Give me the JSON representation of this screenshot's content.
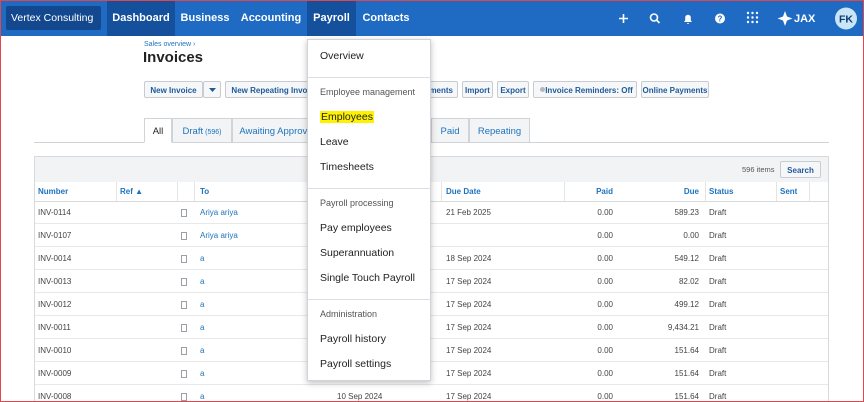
{
  "nav": {
    "org": "Vertex Consulting",
    "items": [
      "Dashboard",
      "Business",
      "Accounting",
      "Payroll",
      "Contacts"
    ],
    "brand": "JAX",
    "avatar": "FK"
  },
  "page": {
    "breadcrumb": "Sales overview ›",
    "title": "Invoices",
    "buttons": [
      "New Invoice",
      "New Repeating Invoice",
      "Statements",
      "Import",
      "Export",
      "Invoice Reminders: Off",
      "Online Payments"
    ],
    "tabs": [
      {
        "label": "All"
      },
      {
        "label": "Draft",
        "count": "(596)"
      },
      {
        "label": "Awaiting Approval"
      },
      {
        "label": "Paid"
      },
      {
        "label": "Repeating"
      }
    ]
  },
  "table": {
    "items": "596 items",
    "search": "Search",
    "columns": [
      "Number",
      "Ref ▲",
      "To",
      "Due Date",
      "Paid",
      "Due",
      "Status",
      "Sent"
    ],
    "rows": [
      {
        "number": "INV-0114",
        "to": "Ariya ariya",
        "due_date": "21 Feb 2025",
        "paid": "0.00",
        "due": "589.23",
        "status": "Draft"
      },
      {
        "number": "INV-0107",
        "to": "Ariya ariya",
        "paid": "0.00",
        "due": "0.00",
        "status": "Draft"
      },
      {
        "number": "INV-0014",
        "to": "a",
        "due_date": "18 Sep 2024",
        "paid": "0.00",
        "due": "549.12",
        "status": "Draft"
      },
      {
        "number": "INV-0013",
        "to": "a",
        "due_date": "17 Sep 2024",
        "paid": "0.00",
        "due": "82.02",
        "status": "Draft"
      },
      {
        "number": "INV-0012",
        "to": "a",
        "due_date": "17 Sep 2024",
        "paid": "0.00",
        "due": "499.12",
        "status": "Draft"
      },
      {
        "number": "INV-0011",
        "to": "a",
        "due_date": "17 Sep 2024",
        "paid": "0.00",
        "due": "9,434.21",
        "status": "Draft"
      },
      {
        "number": "INV-0010",
        "to": "a",
        "due_date": "17 Sep 2024",
        "paid": "0.00",
        "due": "151.64",
        "status": "Draft"
      },
      {
        "number": "INV-0009",
        "to": "a",
        "due_date": "17 Sep 2024",
        "paid": "0.00",
        "due": "151.64",
        "status": "Draft"
      },
      {
        "number": "INV-0008",
        "to": "a",
        "date": "10 Sep 2024",
        "due_date": "17 Sep 2024",
        "paid": "0.00",
        "due": "151.64",
        "status": "Draft"
      }
    ]
  },
  "menu": {
    "sections": [
      {
        "items": [
          "Overview"
        ]
      },
      {
        "heading": "Employee management",
        "items": [
          "Employees",
          "Leave",
          "Timesheets"
        ]
      },
      {
        "heading": "Payroll processing",
        "items": [
          "Pay employees",
          "Superannuation",
          "Single Touch Payroll"
        ]
      },
      {
        "heading": "Administration",
        "items": [
          "Payroll history",
          "Payroll settings"
        ]
      }
    ],
    "highlighted": "Employees"
  }
}
